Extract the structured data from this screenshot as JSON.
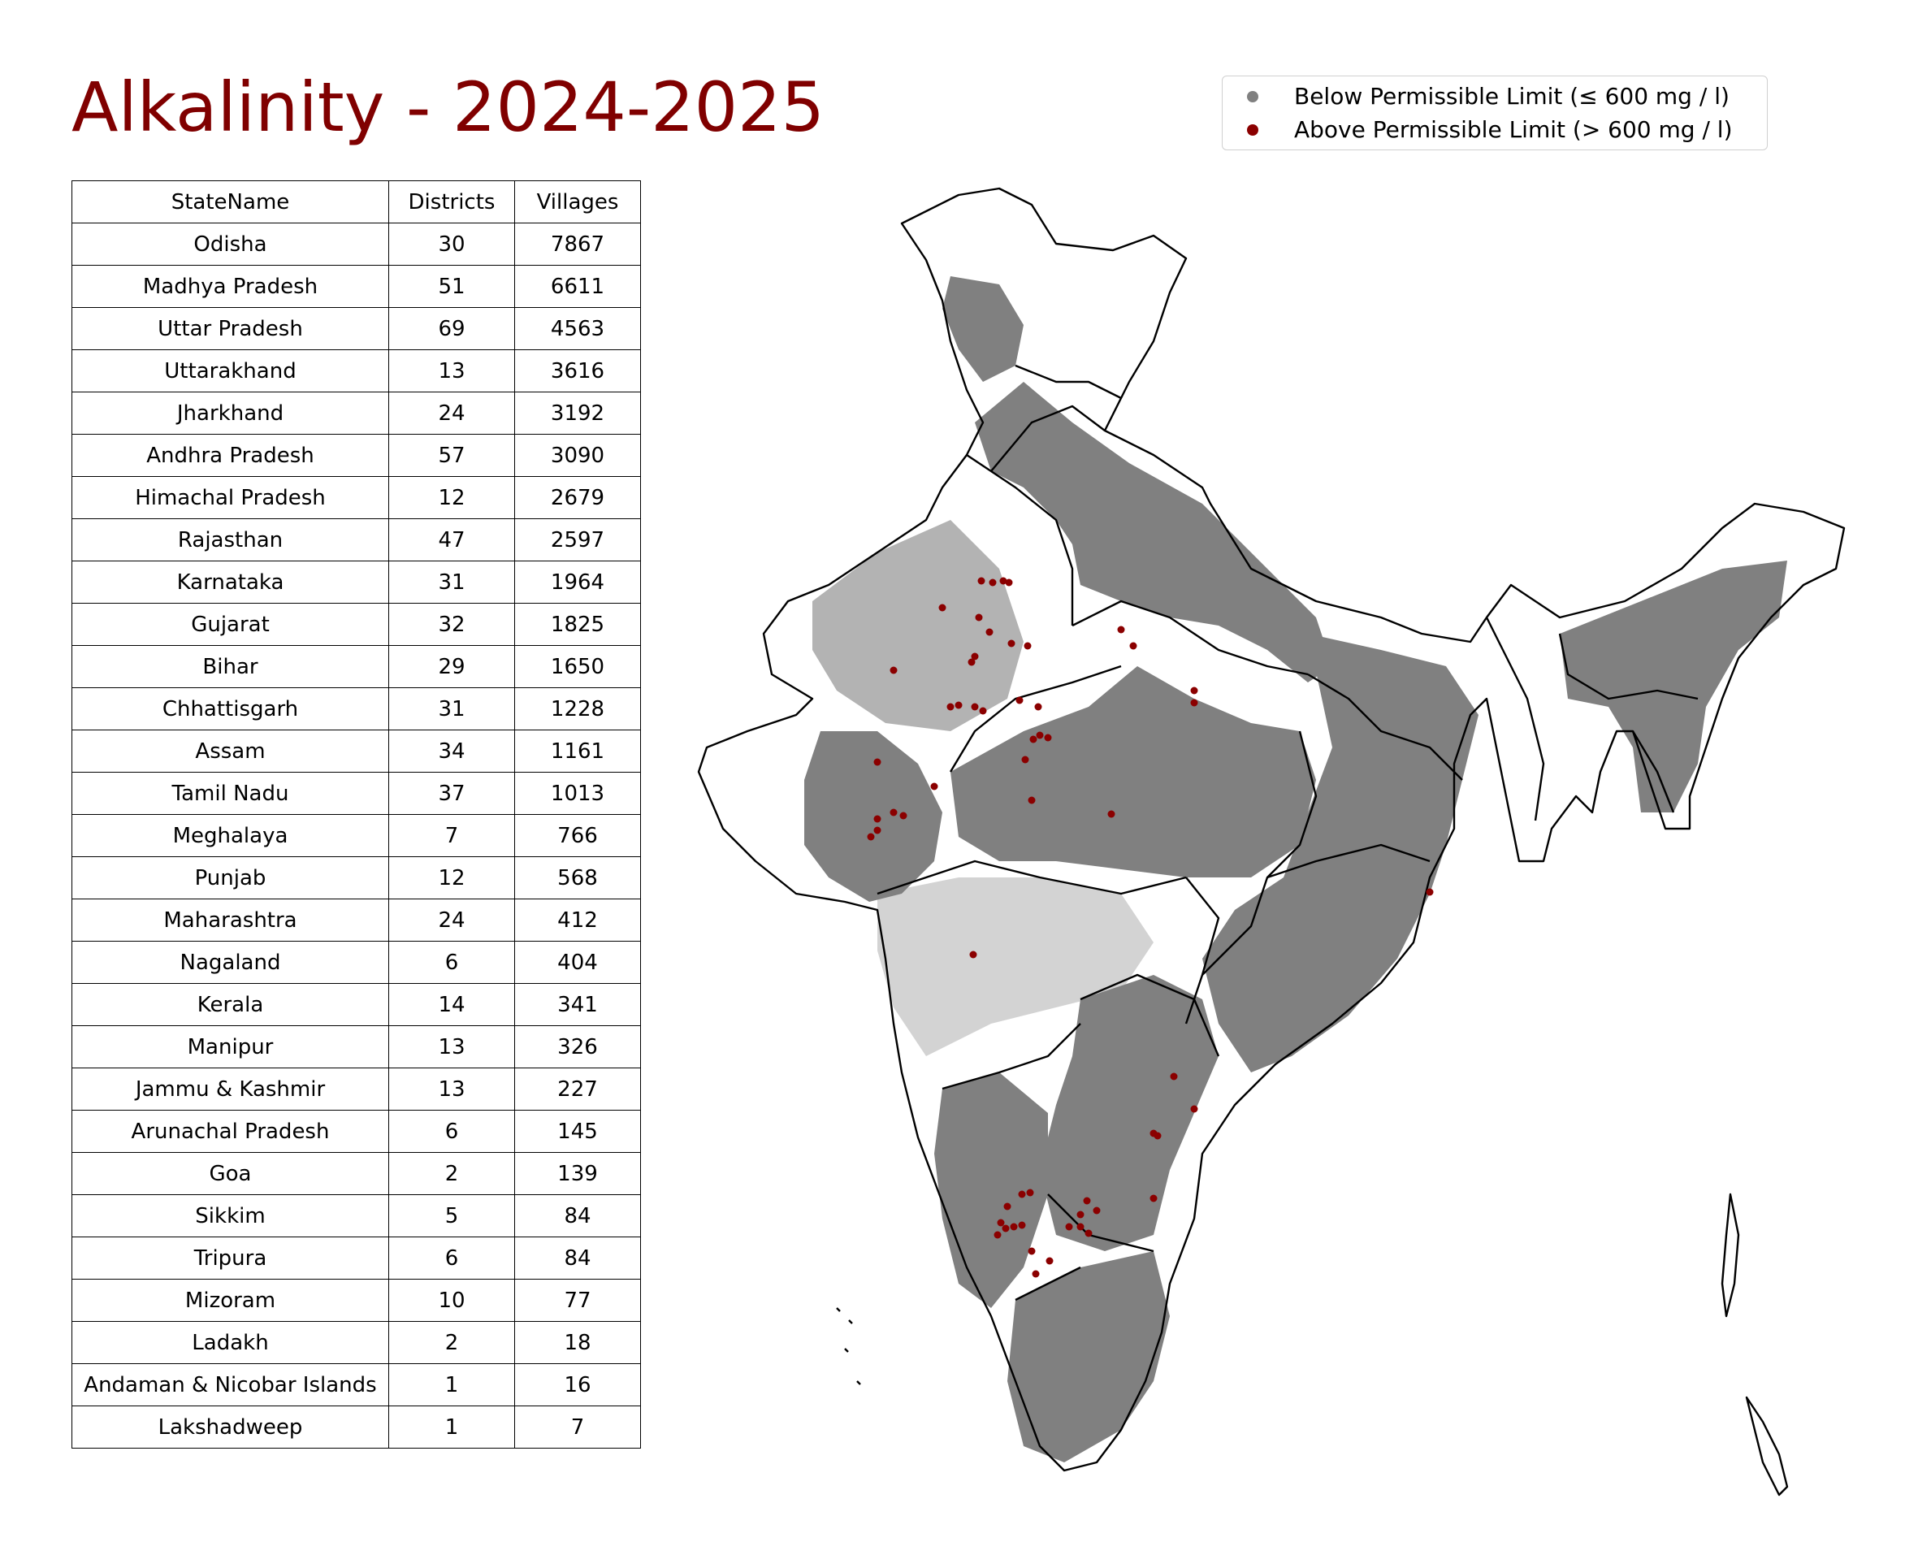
{
  "title": "Alkalinity - 2024-2025",
  "legend": {
    "below": {
      "label": "Below Permissible Limit (≤ 600 mg / l)",
      "color": "#808080"
    },
    "above": {
      "label": "Above Permissible Limit (> 600 mg / l)",
      "color": "#8b0000"
    }
  },
  "table": {
    "headers": [
      "StateName",
      "Districts",
      "Villages"
    ],
    "rows": [
      [
        "Odisha",
        "30",
        "7867"
      ],
      [
        "Madhya Pradesh",
        "51",
        "6611"
      ],
      [
        "Uttar Pradesh",
        "69",
        "4563"
      ],
      [
        "Uttarakhand",
        "13",
        "3616"
      ],
      [
        "Jharkhand",
        "24",
        "3192"
      ],
      [
        "Andhra Pradesh",
        "57",
        "3090"
      ],
      [
        "Himachal Pradesh",
        "12",
        "2679"
      ],
      [
        "Rajasthan",
        "47",
        "2597"
      ],
      [
        "Karnataka",
        "31",
        "1964"
      ],
      [
        "Gujarat",
        "32",
        "1825"
      ],
      [
        "Bihar",
        "29",
        "1650"
      ],
      [
        "Chhattisgarh",
        "31",
        "1228"
      ],
      [
        "Assam",
        "34",
        "1161"
      ],
      [
        "Tamil Nadu",
        "37",
        "1013"
      ],
      [
        "Meghalaya",
        "7",
        "766"
      ],
      [
        "Punjab",
        "12",
        "568"
      ],
      [
        "Maharashtra",
        "24",
        "412"
      ],
      [
        "Nagaland",
        "6",
        "404"
      ],
      [
        "Kerala",
        "14",
        "341"
      ],
      [
        "Manipur",
        "13",
        "326"
      ],
      [
        "Jammu & Kashmir",
        "13",
        "227"
      ],
      [
        "Arunachal Pradesh",
        "6",
        "145"
      ],
      [
        "Goa",
        "2",
        "139"
      ],
      [
        "Sikkim",
        "5",
        "84"
      ],
      [
        "Tripura",
        "6",
        "84"
      ],
      [
        "Mizoram",
        "10",
        "77"
      ],
      [
        "Ladakh",
        "2",
        "18"
      ],
      [
        "Andaman & Nicobar Islands",
        "1",
        "16"
      ],
      [
        "Lakshadweep",
        "1",
        "7"
      ]
    ]
  },
  "map": {
    "outline_color": "#000000",
    "shaded_color": "#808080",
    "exceed_color": "#8b0000"
  }
}
